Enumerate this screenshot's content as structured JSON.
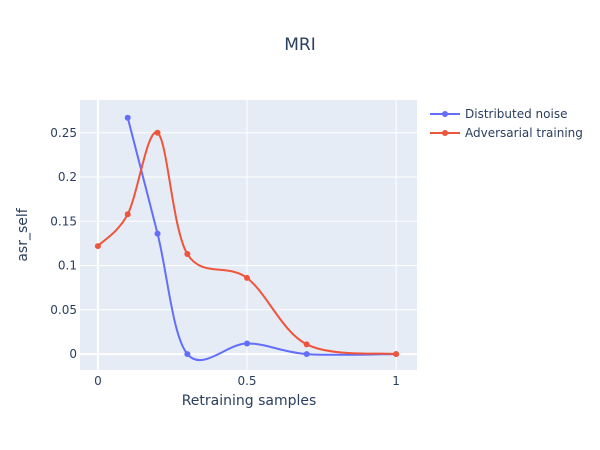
{
  "chart_data": {
    "type": "line",
    "title": "MRI",
    "xlabel": "Retraining samples",
    "ylabel": "asr_self",
    "xlim": [
      -0.06,
      1.07
    ],
    "ylim": [
      -0.018,
      0.287
    ],
    "x_ticks": [
      0,
      0.5,
      1
    ],
    "x_tick_labels": [
      "0",
      "0.5",
      "1"
    ],
    "y_ticks": [
      0,
      0.05,
      0.1,
      0.15,
      0.2,
      0.25
    ],
    "y_tick_labels": [
      "0",
      "0.05",
      "0.1",
      "0.15",
      "0.2",
      "0.25"
    ],
    "grid": true,
    "legend_position": "top-right",
    "series": [
      {
        "name": "Distributed noise",
        "color": "#636efa",
        "x": [
          0.1,
          0.2,
          0.3,
          0.5,
          0.7,
          1.0
        ],
        "y": [
          0.267,
          0.136,
          0.0,
          0.012,
          0.0,
          0.0
        ]
      },
      {
        "name": "Adversarial training",
        "color": "#ef553b",
        "x": [
          0.0,
          0.1,
          0.2,
          0.3,
          0.5,
          0.7,
          1.0
        ],
        "y": [
          0.122,
          0.158,
          0.25,
          0.113,
          0.086,
          0.011,
          0.0
        ]
      }
    ]
  }
}
